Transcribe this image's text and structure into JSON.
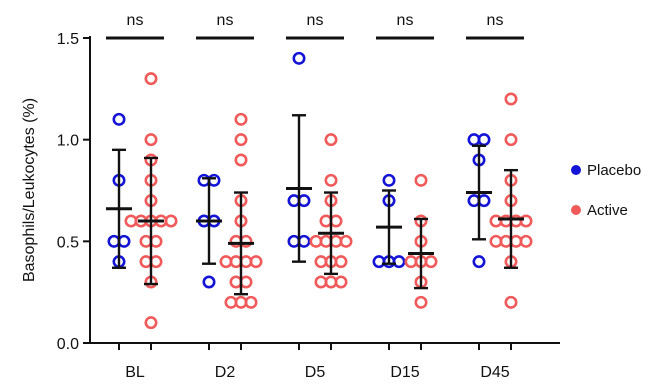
{
  "chart_data": {
    "type": "scatter",
    "title": "",
    "xlabel": "",
    "ylabel": "Basophils/Leukocytes (%)",
    "ylim": [
      0,
      1.5
    ],
    "yticks": [
      "0.0",
      "0.5",
      "1.0",
      "1.5"
    ],
    "categories": [
      "BL",
      "D2",
      "D5",
      "D15",
      "D45"
    ],
    "grid": false,
    "legend_position": "right",
    "significance": [
      "ns",
      "ns",
      "ns",
      "ns",
      "ns"
    ],
    "series": [
      {
        "name": "Placebo",
        "color": "#1414d6",
        "marker": "open-circle",
        "points": [
          [
            1.1,
            0.8,
            0.5,
            0.5,
            0.4
          ],
          [
            0.8,
            0.8,
            0.6,
            0.6,
            0.3
          ],
          [
            1.4,
            0.7,
            0.7,
            0.5,
            0.5
          ],
          [
            0.8,
            0.7,
            0.4,
            0.4,
            0.4
          ],
          [
            1.0,
            1.0,
            0.9,
            0.7,
            0.7,
            0.4
          ]
        ],
        "mean": [
          0.66,
          0.6,
          0.76,
          0.57,
          0.74
        ],
        "sd": [
          0.29,
          0.21,
          0.36,
          0.18,
          0.23
        ]
      },
      {
        "name": "Active",
        "color": "#f05a5a",
        "marker": "open-circle",
        "points": [
          [
            1.3,
            1.0,
            0.9,
            0.8,
            0.7,
            0.6,
            0.6,
            0.6,
            0.6,
            0.6,
            0.5,
            0.5,
            0.4,
            0.4,
            0.3,
            0.1
          ],
          [
            1.1,
            1.0,
            0.9,
            0.7,
            0.6,
            0.5,
            0.5,
            0.4,
            0.4,
            0.4,
            0.4,
            0.3,
            0.3,
            0.2,
            0.2,
            0.2
          ],
          [
            1.0,
            0.8,
            0.7,
            0.6,
            0.6,
            0.5,
            0.5,
            0.5,
            0.5,
            0.4,
            0.4,
            0.4,
            0.3,
            0.3,
            0.3
          ],
          [
            0.8,
            0.6,
            0.5,
            0.4,
            0.4,
            0.4,
            0.3,
            0.2
          ],
          [
            1.2,
            1.0,
            0.8,
            0.7,
            0.6,
            0.6,
            0.6,
            0.6,
            0.5,
            0.5,
            0.5,
            0.5,
            0.4,
            0.2
          ]
        ],
        "mean": [
          0.6,
          0.49,
          0.54,
          0.44,
          0.61
        ],
        "sd": [
          0.31,
          0.25,
          0.2,
          0.17,
          0.24
        ]
      }
    ]
  }
}
